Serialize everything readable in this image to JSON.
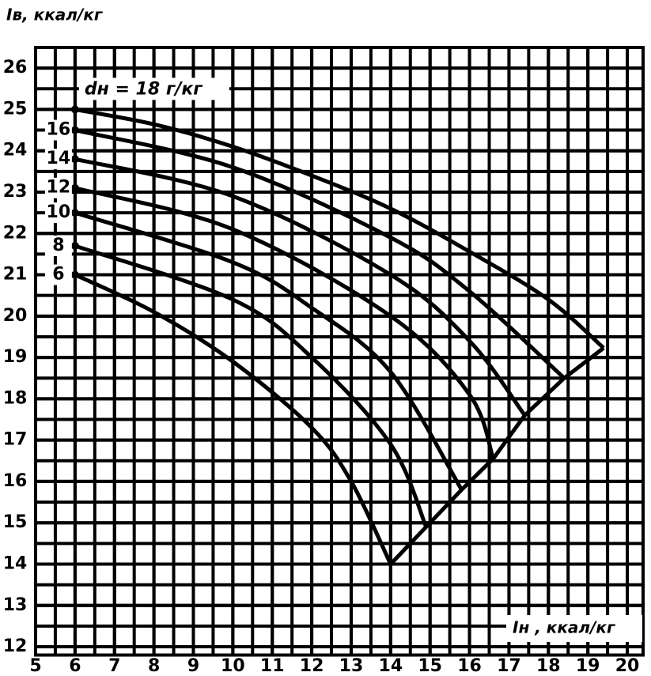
{
  "chart_data": {
    "type": "line",
    "y_label": "Iв, ккал/кг",
    "x_label": "Iн , ккал/кг",
    "xlim": [
      5,
      20.4
    ],
    "ylim": [
      11.8,
      26.5
    ],
    "xticks": [
      5,
      6,
      7,
      8,
      9,
      10,
      11,
      12,
      13,
      14,
      15,
      16,
      17,
      18,
      19,
      20
    ],
    "yticks": [
      12,
      13,
      14,
      15,
      16,
      17,
      18,
      19,
      20,
      21,
      22,
      23,
      24,
      25,
      26
    ],
    "grid": true,
    "minor_grid": 0.5,
    "color": "#000000",
    "series": [
      {
        "name": "6",
        "x": [
          6,
          8,
          10,
          12,
          13,
          14
        ],
        "values": [
          21.0,
          20.1,
          18.9,
          17.3,
          16.0,
          14.0
        ]
      },
      {
        "name": "8",
        "x": [
          6,
          10,
          12,
          14,
          14.9
        ],
        "values": [
          21.7,
          20.4,
          19.0,
          16.9,
          14.9
        ]
      },
      {
        "name": "10",
        "x": [
          6,
          10,
          12,
          14,
          15.8
        ],
        "values": [
          22.5,
          21.3,
          20.2,
          18.65,
          15.8
        ]
      },
      {
        "name": "12",
        "x": [
          6,
          10,
          14,
          16,
          16.6
        ],
        "values": [
          23.1,
          22.1,
          20.0,
          18.1,
          16.55
        ]
      },
      {
        "name": "14",
        "x": [
          6,
          10,
          14,
          16,
          17.4
        ],
        "values": [
          23.8,
          22.9,
          21.0,
          19.4,
          17.6
        ]
      },
      {
        "name": "16",
        "x": [
          6,
          10,
          14,
          16,
          18.4
        ],
        "values": [
          24.5,
          23.6,
          21.9,
          20.6,
          18.5
        ]
      },
      {
        "name": "dн = 18 г/кг",
        "x": [
          6,
          8,
          10,
          12,
          14,
          16,
          18,
          19.4
        ],
        "values": [
          25.0,
          24.64,
          24.1,
          23.4,
          22.6,
          21.56,
          20.4,
          19.23
        ]
      }
    ]
  }
}
